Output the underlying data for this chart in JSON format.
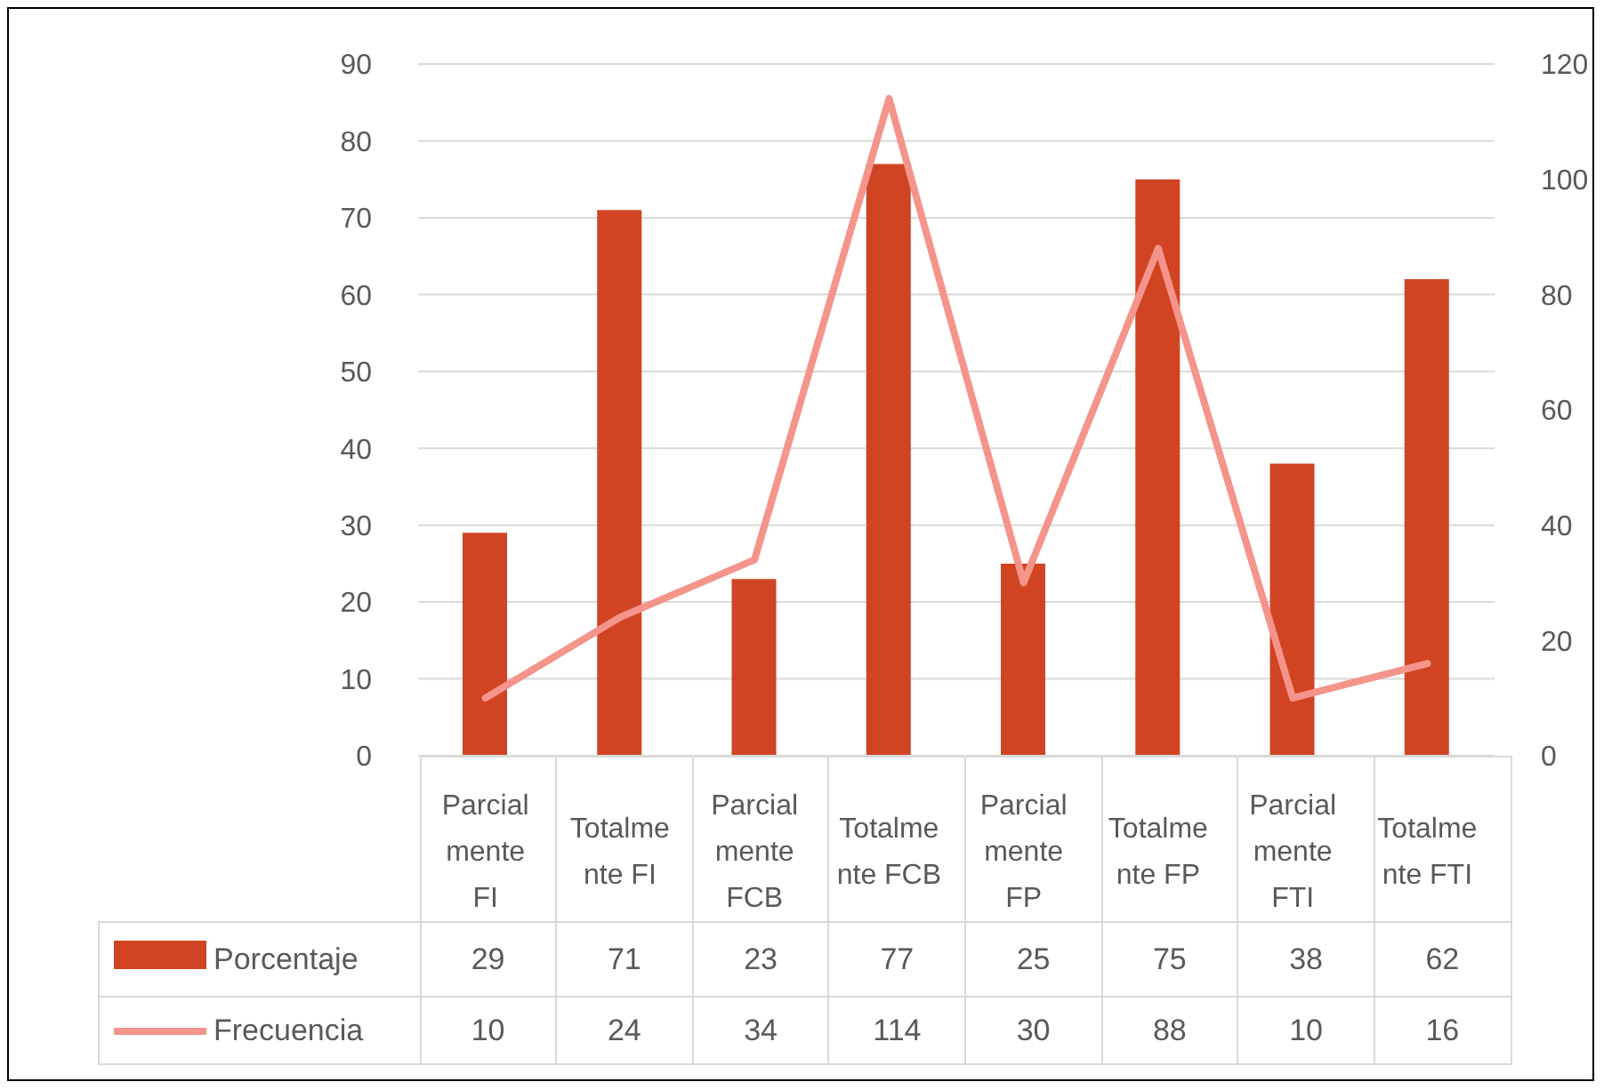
{
  "chart_data": {
    "type": "bar",
    "categories": [
      "Parcialmente FI",
      "Totalmente FI",
      "Parcialmente FCB",
      "Totalmente FCB",
      "Parcialmente FP",
      "Totalmente FP",
      "Parcialmente FTI",
      "Totalmente FTI"
    ],
    "series": [
      {
        "name": "Porcentaje",
        "color": "#d04423",
        "values": [
          29,
          71,
          23,
          77,
          25,
          75,
          38,
          62
        ]
      },
      {
        "name": "Frecuencia",
        "type": "line",
        "axis": "y2",
        "color": "#f4948a",
        "values": [
          10,
          24,
          34,
          114,
          30,
          88,
          10,
          16
        ]
      }
    ],
    "ylim": [
      0,
      90
    ],
    "yticks": [
      0,
      10,
      20,
      30,
      40,
      50,
      60,
      70,
      80,
      90
    ],
    "y2lim": [
      0,
      120
    ],
    "y2ticks": [
      0,
      20,
      40,
      60,
      80,
      100,
      120
    ],
    "grid": "y",
    "legend": "bottom",
    "data_labels": true,
    "marker": "none"
  }
}
